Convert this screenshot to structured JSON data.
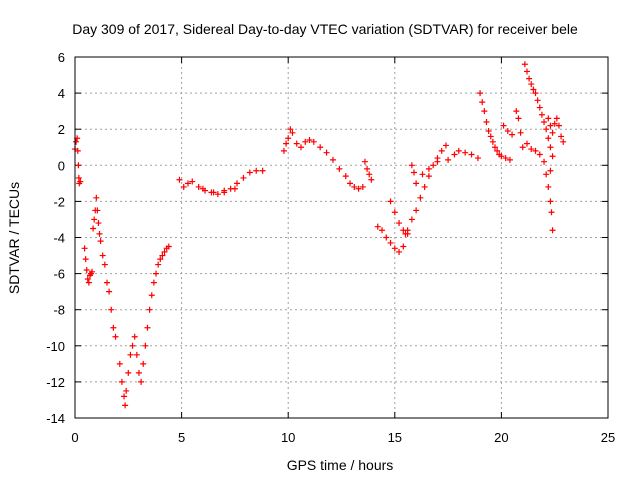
{
  "chart_data": {
    "type": "scatter",
    "title": "Day 309 of 2017, Sidereal Day-to-day VTEC variation (SDTVAR) for receiver bele",
    "xlabel": "GPS time / hours",
    "ylabel": "SDTVAR / TECUs",
    "xlim": [
      0,
      25
    ],
    "ylim": [
      -14,
      6
    ],
    "xticks": [
      0,
      5,
      10,
      15,
      20,
      25
    ],
    "yticks": [
      -14,
      -12,
      -10,
      -8,
      -6,
      -4,
      -2,
      0,
      2,
      4,
      6
    ],
    "grid": true,
    "legend": "none",
    "marker": "plus",
    "color": "#ff0000",
    "series": [
      {
        "points": [
          [
            0.0,
            0.9
          ],
          [
            0.05,
            1.3
          ],
          [
            0.1,
            1.5
          ],
          [
            0.13,
            0.8
          ],
          [
            0.16,
            0.0
          ],
          [
            0.18,
            -0.7
          ],
          [
            0.2,
            -1.0
          ],
          [
            0.25,
            -0.9
          ],
          [
            0.45,
            -4.6
          ],
          [
            0.5,
            -5.2
          ],
          [
            0.55,
            -5.8
          ],
          [
            0.6,
            -6.3
          ],
          [
            0.65,
            -6.5
          ],
          [
            0.7,
            -6.1
          ],
          [
            0.75,
            -6.0
          ],
          [
            0.8,
            -5.9
          ],
          [
            0.85,
            -3.5
          ],
          [
            0.9,
            -3.0
          ],
          [
            0.95,
            -2.5
          ],
          [
            1.0,
            -1.8
          ],
          [
            1.05,
            -2.5
          ],
          [
            1.1,
            -3.2
          ],
          [
            1.15,
            -3.8
          ],
          [
            1.2,
            -4.2
          ],
          [
            1.3,
            -5.0
          ],
          [
            1.4,
            -5.5
          ],
          [
            1.5,
            -6.5
          ],
          [
            1.6,
            -7.0
          ],
          [
            1.7,
            -8.0
          ],
          [
            1.8,
            -9.0
          ],
          [
            1.9,
            -9.5
          ],
          [
            2.1,
            -11.0
          ],
          [
            2.2,
            -12.0
          ],
          [
            2.3,
            -12.8
          ],
          [
            2.35,
            -13.3
          ],
          [
            2.4,
            -12.5
          ],
          [
            2.5,
            -11.5
          ],
          [
            2.6,
            -10.5
          ],
          [
            2.7,
            -10.0
          ],
          [
            2.8,
            -9.5
          ],
          [
            2.9,
            -10.5
          ],
          [
            3.0,
            -11.5
          ],
          [
            3.1,
            -12.0
          ],
          [
            3.2,
            -11.0
          ],
          [
            3.3,
            -10.0
          ],
          [
            3.4,
            -9.0
          ],
          [
            3.5,
            -8.0
          ],
          [
            3.6,
            -7.2
          ],
          [
            3.7,
            -6.5
          ],
          [
            3.8,
            -6.0
          ],
          [
            3.9,
            -5.5
          ],
          [
            4.0,
            -5.2
          ],
          [
            4.1,
            -5.0
          ],
          [
            4.2,
            -4.8
          ],
          [
            4.3,
            -4.6
          ],
          [
            4.4,
            -4.5
          ],
          [
            4.9,
            -0.8
          ],
          [
            5.1,
            -1.2
          ],
          [
            5.3,
            -1.0
          ],
          [
            5.5,
            -0.9
          ],
          [
            5.8,
            -1.2
          ],
          [
            6.1,
            -1.4
          ],
          [
            6.4,
            -1.5
          ],
          [
            6.7,
            -1.6
          ],
          [
            7.0,
            -1.5
          ],
          [
            7.3,
            -1.3
          ],
          [
            7.6,
            -1.0
          ],
          [
            7.9,
            -0.7
          ],
          [
            8.2,
            -0.4
          ],
          [
            8.5,
            -0.3
          ],
          [
            8.8,
            -0.3
          ],
          [
            6.0,
            -1.3
          ],
          [
            6.5,
            -1.5
          ],
          [
            7.0,
            -1.4
          ],
          [
            7.5,
            -1.3
          ],
          [
            9.8,
            0.8
          ],
          [
            9.9,
            1.2
          ],
          [
            10.0,
            1.5
          ],
          [
            10.1,
            2.0
          ],
          [
            10.2,
            1.8
          ],
          [
            10.4,
            1.2
          ],
          [
            10.6,
            1.0
          ],
          [
            10.8,
            1.3
          ],
          [
            11.0,
            1.4
          ],
          [
            11.2,
            1.3
          ],
          [
            11.5,
            1.0
          ],
          [
            11.8,
            0.7
          ],
          [
            12.1,
            0.3
          ],
          [
            12.4,
            -0.2
          ],
          [
            12.7,
            -0.6
          ],
          [
            12.9,
            -1.0
          ],
          [
            13.1,
            -1.2
          ],
          [
            13.3,
            -1.3
          ],
          [
            13.5,
            -1.2
          ],
          [
            13.6,
            0.2
          ],
          [
            13.7,
            -0.2
          ],
          [
            13.8,
            -0.5
          ],
          [
            13.9,
            -0.8
          ],
          [
            14.2,
            -3.4
          ],
          [
            14.4,
            -3.6
          ],
          [
            14.6,
            -4.0
          ],
          [
            14.8,
            -4.3
          ],
          [
            15.0,
            -4.6
          ],
          [
            15.2,
            -4.8
          ],
          [
            15.4,
            -4.5
          ],
          [
            15.5,
            -3.8
          ],
          [
            15.6,
            -3.6
          ],
          [
            15.8,
            -3.0
          ],
          [
            16.0,
            -2.5
          ],
          [
            16.2,
            -1.8
          ],
          [
            16.4,
            -1.2
          ],
          [
            16.6,
            -0.6
          ],
          [
            16.8,
            0.0
          ],
          [
            17.0,
            0.4
          ],
          [
            17.2,
            0.8
          ],
          [
            17.4,
            1.1
          ],
          [
            14.8,
            -2.0
          ],
          [
            15.0,
            -2.6
          ],
          [
            15.2,
            -3.2
          ],
          [
            15.4,
            -3.6
          ],
          [
            15.6,
            -3.8
          ],
          [
            15.8,
            0.0
          ],
          [
            15.9,
            -0.4
          ],
          [
            16.0,
            -1.0
          ],
          [
            16.3,
            -0.5
          ],
          [
            16.6,
            -0.2
          ],
          [
            17.0,
            0.2
          ],
          [
            17.5,
            0.3
          ],
          [
            17.8,
            0.6
          ],
          [
            18.0,
            0.8
          ],
          [
            18.3,
            0.7
          ],
          [
            18.6,
            0.6
          ],
          [
            18.9,
            0.4
          ],
          [
            19.0,
            4.0
          ],
          [
            19.1,
            3.5
          ],
          [
            19.2,
            3.0
          ],
          [
            19.3,
            2.4
          ],
          [
            19.4,
            1.9
          ],
          [
            19.5,
            1.6
          ],
          [
            19.6,
            1.3
          ],
          [
            19.7,
            1.0
          ],
          [
            19.8,
            0.8
          ],
          [
            19.9,
            0.6
          ],
          [
            20.0,
            0.5
          ],
          [
            20.2,
            0.4
          ],
          [
            20.4,
            0.3
          ],
          [
            20.1,
            2.2
          ],
          [
            20.3,
            1.9
          ],
          [
            20.5,
            1.7
          ],
          [
            20.7,
            3.0
          ],
          [
            20.8,
            2.6
          ],
          [
            20.9,
            1.8
          ],
          [
            21.0,
            1.0
          ],
          [
            21.1,
            5.6
          ],
          [
            21.2,
            5.2
          ],
          [
            21.3,
            4.8
          ],
          [
            21.4,
            4.5
          ],
          [
            21.5,
            4.2
          ],
          [
            21.6,
            4.0
          ],
          [
            21.7,
            3.6
          ],
          [
            21.8,
            3.2
          ],
          [
            21.9,
            2.8
          ],
          [
            22.0,
            2.4
          ],
          [
            22.1,
            2.0
          ],
          [
            22.2,
            1.5
          ],
          [
            22.3,
            1.0
          ],
          [
            22.4,
            0.5
          ],
          [
            21.2,
            1.2
          ],
          [
            21.4,
            0.9
          ],
          [
            21.6,
            0.8
          ],
          [
            21.8,
            0.6
          ],
          [
            22.0,
            0.2
          ],
          [
            22.1,
            -0.5
          ],
          [
            22.2,
            -1.2
          ],
          [
            22.3,
            -2.0
          ],
          [
            22.35,
            -2.6
          ],
          [
            22.4,
            -3.6
          ],
          [
            22.3,
            -0.3
          ],
          [
            22.2,
            2.6
          ],
          [
            22.3,
            2.2
          ],
          [
            22.4,
            1.8
          ],
          [
            22.5,
            2.3
          ],
          [
            22.6,
            2.6
          ],
          [
            22.7,
            2.2
          ],
          [
            22.8,
            1.6
          ],
          [
            22.9,
            1.3
          ]
        ]
      }
    ]
  }
}
